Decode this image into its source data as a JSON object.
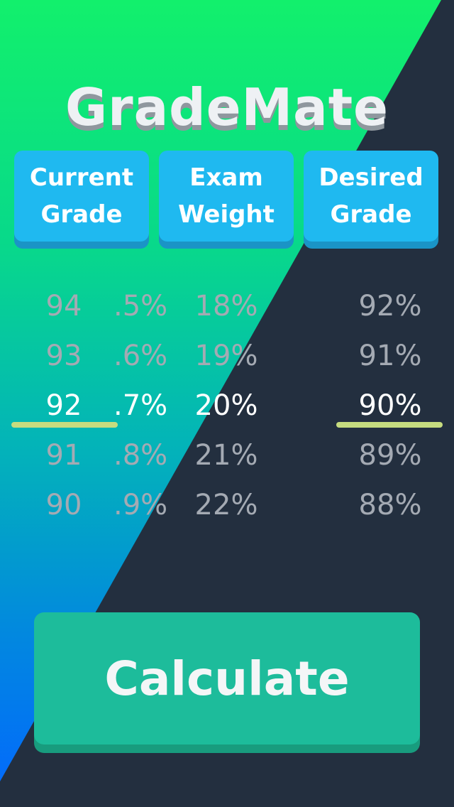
{
  "app": {
    "title": "GradeMate"
  },
  "headers": {
    "current": "Current\nGrade",
    "weight": "Exam\nWeight",
    "desired": "Desired\nGrade"
  },
  "pickers": {
    "current_grade": {
      "values": [
        "94",
        "93",
        "92",
        "91",
        "90"
      ],
      "selected": "92"
    },
    "decimal": {
      "values": [
        ".5%",
        ".6%",
        ".7%",
        ".8%",
        ".9%"
      ],
      "selected": ".7%"
    },
    "exam_weight": {
      "values": [
        "18%",
        "19%",
        "20%",
        "21%",
        "22%"
      ],
      "selected": "20%"
    },
    "desired_grade": {
      "values": [
        "92%",
        "91%",
        "90%",
        "89%",
        "88%"
      ],
      "selected": "90%"
    }
  },
  "actions": {
    "calculate": "Calculate"
  },
  "colors": {
    "gradient_top": "#12f06c",
    "gradient_bottom": "#0367ff",
    "dark_panel": "#232f3f",
    "header_tile": "#1fb9f0",
    "selection_underline": "#c6dc7f",
    "calculate_button": "#1dbc9b"
  }
}
